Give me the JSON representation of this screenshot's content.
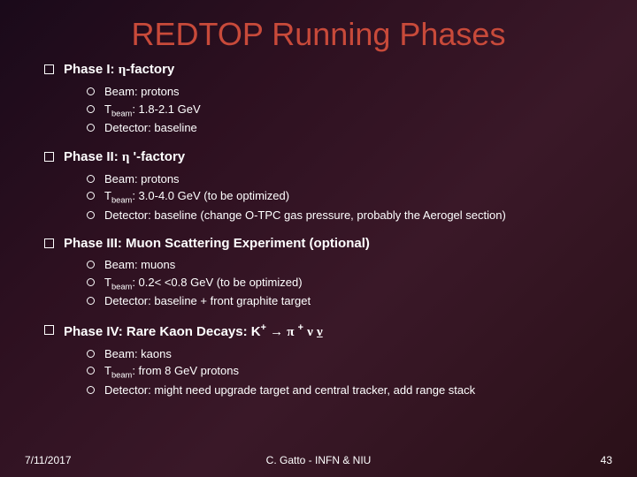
{
  "title": "REDTOP Running Phases",
  "phases": [
    {
      "heading_html": "Phase I: <span class='greek'>η</span>-factory",
      "items": [
        "Beam: protons",
        "T<sub>beam</sub>: 1.8-2.1 GeV",
        "Detector: baseline"
      ]
    },
    {
      "heading_html": "Phase II: <span class='greek'>η</span> '-factory",
      "items": [
        "Beam: protons",
        "T<sub>beam</sub>: 3.0-4.0 GeV (to be optimized)",
        "Detector: baseline (change O-TPC gas pressure, probably the Aerogel section)"
      ]
    },
    {
      "heading_html": "Phase III: Muon Scattering Experiment (optional)",
      "items": [
        "Beam: muons",
        "T<sub>beam</sub>: 0.2&lt; &lt;0.8 GeV (to be optimized)",
        "Detector: baseline + front graphite target"
      ]
    },
    {
      "heading_html": "Phase IV: Rare Kaon Decays: K<sup>+</sup> → <span class='greek'>π</span> <sup>+</sup> <span class='greek'>ν</span> <span class='greek underline'>ν</span>",
      "items": [
        "Beam: kaons",
        "T<sub>beam</sub>: from 8 GeV protons",
        "Detector: might need upgrade target and central tracker, add range stack"
      ]
    }
  ],
  "footer": {
    "date": "7/11/2017",
    "author": "C. Gatto - INFN & NIU",
    "page": "43"
  },
  "colors": {
    "title": "#c84a3a",
    "text": "#ffffff",
    "bg_start": "#1a0a1a",
    "bg_end": "#2a1018"
  }
}
